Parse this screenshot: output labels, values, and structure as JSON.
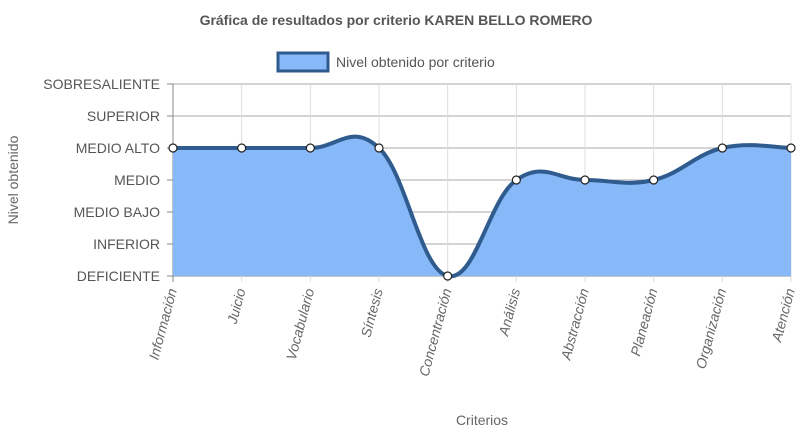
{
  "chart_data": {
    "type": "area",
    "title": "Gráfica de resultados por criterio KAREN BELLO ROMERO",
    "xlabel": "Criterios",
    "ylabel": "Nivel obtenido",
    "categories": [
      "Información",
      "Juicio",
      "Vocabulario",
      "Síntesis",
      "Concentración",
      "Análisis",
      "Abstracción",
      "Planeación",
      "Organización",
      "Atención"
    ],
    "y_levels": [
      "DEFICIENTE",
      "INFERIOR",
      "MEDIO BAJO",
      "MEDIO",
      "MEDIO ALTO",
      "SUPERIOR",
      "SOBRESALIENTE"
    ],
    "ylim": [
      0,
      6
    ],
    "grid": true,
    "legend_position": "top-center",
    "series": [
      {
        "name": "Nivel obtenido por criterio",
        "values": [
          4,
          4,
          4,
          4,
          0,
          3,
          3,
          3,
          4,
          4
        ],
        "fill_color": "#87b8f7",
        "line_color": "#2f5b8e"
      }
    ]
  }
}
